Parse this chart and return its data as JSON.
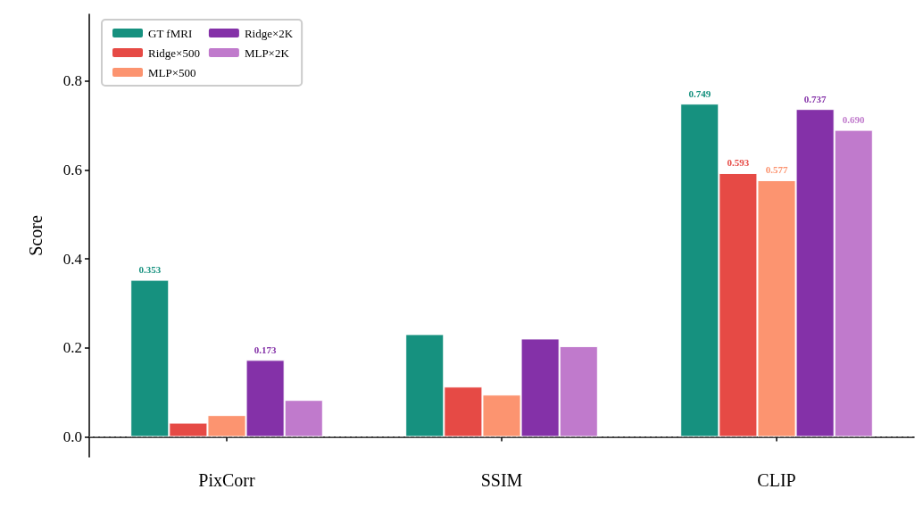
{
  "chart_data": {
    "type": "bar",
    "ylabel": "Score",
    "categories": [
      "PixCorr",
      "SSIM",
      "CLIP"
    ],
    "series": [
      {
        "name": "GT fMRI",
        "color": "#16917f",
        "values": [
          0.353,
          0.231,
          0.749
        ],
        "value_labels": [
          "0.353",
          null,
          "0.749"
        ]
      },
      {
        "name": "Ridge×500",
        "color": "#e64a45",
        "values": [
          0.032,
          0.113,
          0.593
        ],
        "value_labels": [
          null,
          null,
          "0.593"
        ]
      },
      {
        "name": "MLP×500",
        "color": "#fc9470",
        "values": [
          0.049,
          0.095,
          0.577
        ],
        "value_labels": [
          null,
          null,
          "0.577"
        ]
      },
      {
        "name": "Ridge×2K",
        "color": "#8431a8",
        "values": [
          0.173,
          0.221,
          0.737
        ],
        "value_labels": [
          "0.173",
          null,
          "0.737"
        ]
      },
      {
        "name": "MLP×2K",
        "color": "#c07acc",
        "values": [
          0.083,
          0.204,
          0.69
        ],
        "value_labels": [
          null,
          null,
          "0.690"
        ]
      }
    ],
    "ylim": [
      -0.045,
      0.95
    ],
    "yticks": [
      {
        "value": 0,
        "label": "0.0"
      },
      {
        "value": 0.2,
        "label": "0.2"
      },
      {
        "value": 0.4,
        "label": "0.4"
      },
      {
        "value": 0.6,
        "label": "0.6"
      },
      {
        "value": 0.8,
        "label": "0.8"
      }
    ],
    "ref_lines": [
      {
        "axis": "y",
        "value": 0,
        "color": "#808080",
        "line_style": "dashed"
      }
    ],
    "legend": "top left",
    "grid": false
  }
}
